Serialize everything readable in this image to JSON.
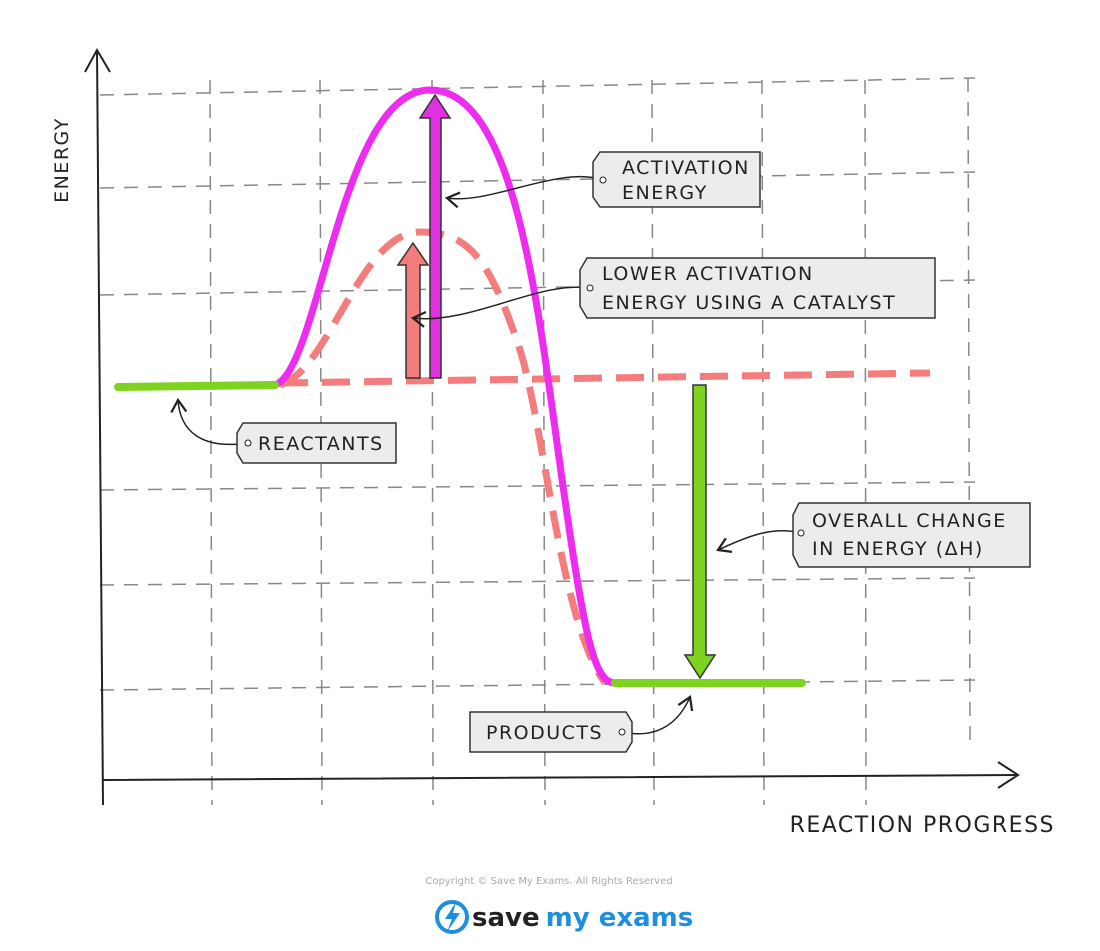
{
  "axes": {
    "y_label": "ENERGY",
    "x_label": "REACTION PROGRESS"
  },
  "labels": {
    "activation_energy": [
      "ACTIVATION",
      "ENERGY"
    ],
    "catalyst": [
      "LOWER ACTIVATION",
      "ENERGY USING A CATALYST"
    ],
    "reactants": "REACTANTS",
    "overall_change": [
      "OVERALL CHANGE",
      "IN ENERGY (ΔH)"
    ],
    "products": "PRODUCTS"
  },
  "footer": {
    "copyright": "Copyright © Save My Exams. All Rights Reserved",
    "logo_left": "save",
    "logo_right": "my exams"
  }
}
